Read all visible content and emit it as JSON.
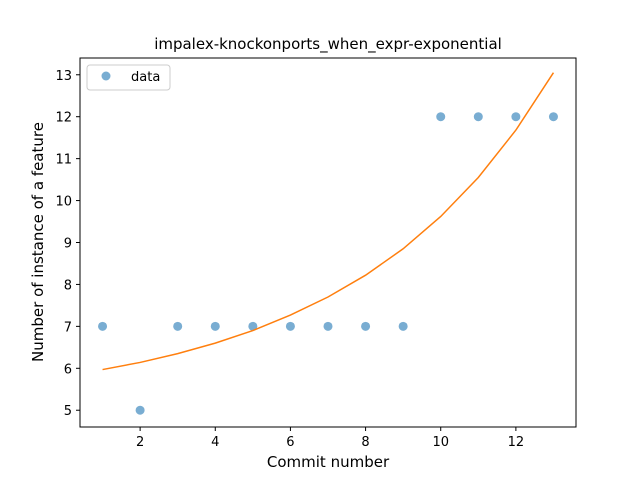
{
  "chart_data": {
    "type": "scatter",
    "title": "impalex-knockonports_when_expr-exponential",
    "xlabel": "Commit number",
    "ylabel": "Number of instance of a feature",
    "xlim": [
      0.4,
      13.6
    ],
    "ylim": [
      4.6,
      13.4
    ],
    "xticks": [
      2,
      4,
      6,
      8,
      10,
      12
    ],
    "yticks": [
      5,
      6,
      7,
      8,
      9,
      10,
      11,
      12,
      13
    ],
    "grid": false,
    "legend_position": "top-left",
    "series": [
      {
        "name": "data",
        "kind": "scatter",
        "color": "#1f77b4",
        "x": [
          1,
          2,
          3,
          4,
          5,
          6,
          7,
          8,
          9,
          10,
          11,
          12,
          13
        ],
        "y": [
          7,
          5,
          7,
          7,
          7,
          7,
          7,
          7,
          7,
          12,
          12,
          12,
          12
        ]
      },
      {
        "kind": "line",
        "color": "#ff7f0e",
        "x": [
          1,
          2,
          3,
          4,
          5,
          6,
          7,
          8,
          9,
          10,
          11,
          12,
          13
        ],
        "y": [
          5.97,
          6.14,
          6.35,
          6.6,
          6.9,
          7.27,
          7.7,
          8.22,
          8.85,
          9.62,
          10.55,
          11.68,
          13.05
        ]
      }
    ]
  }
}
